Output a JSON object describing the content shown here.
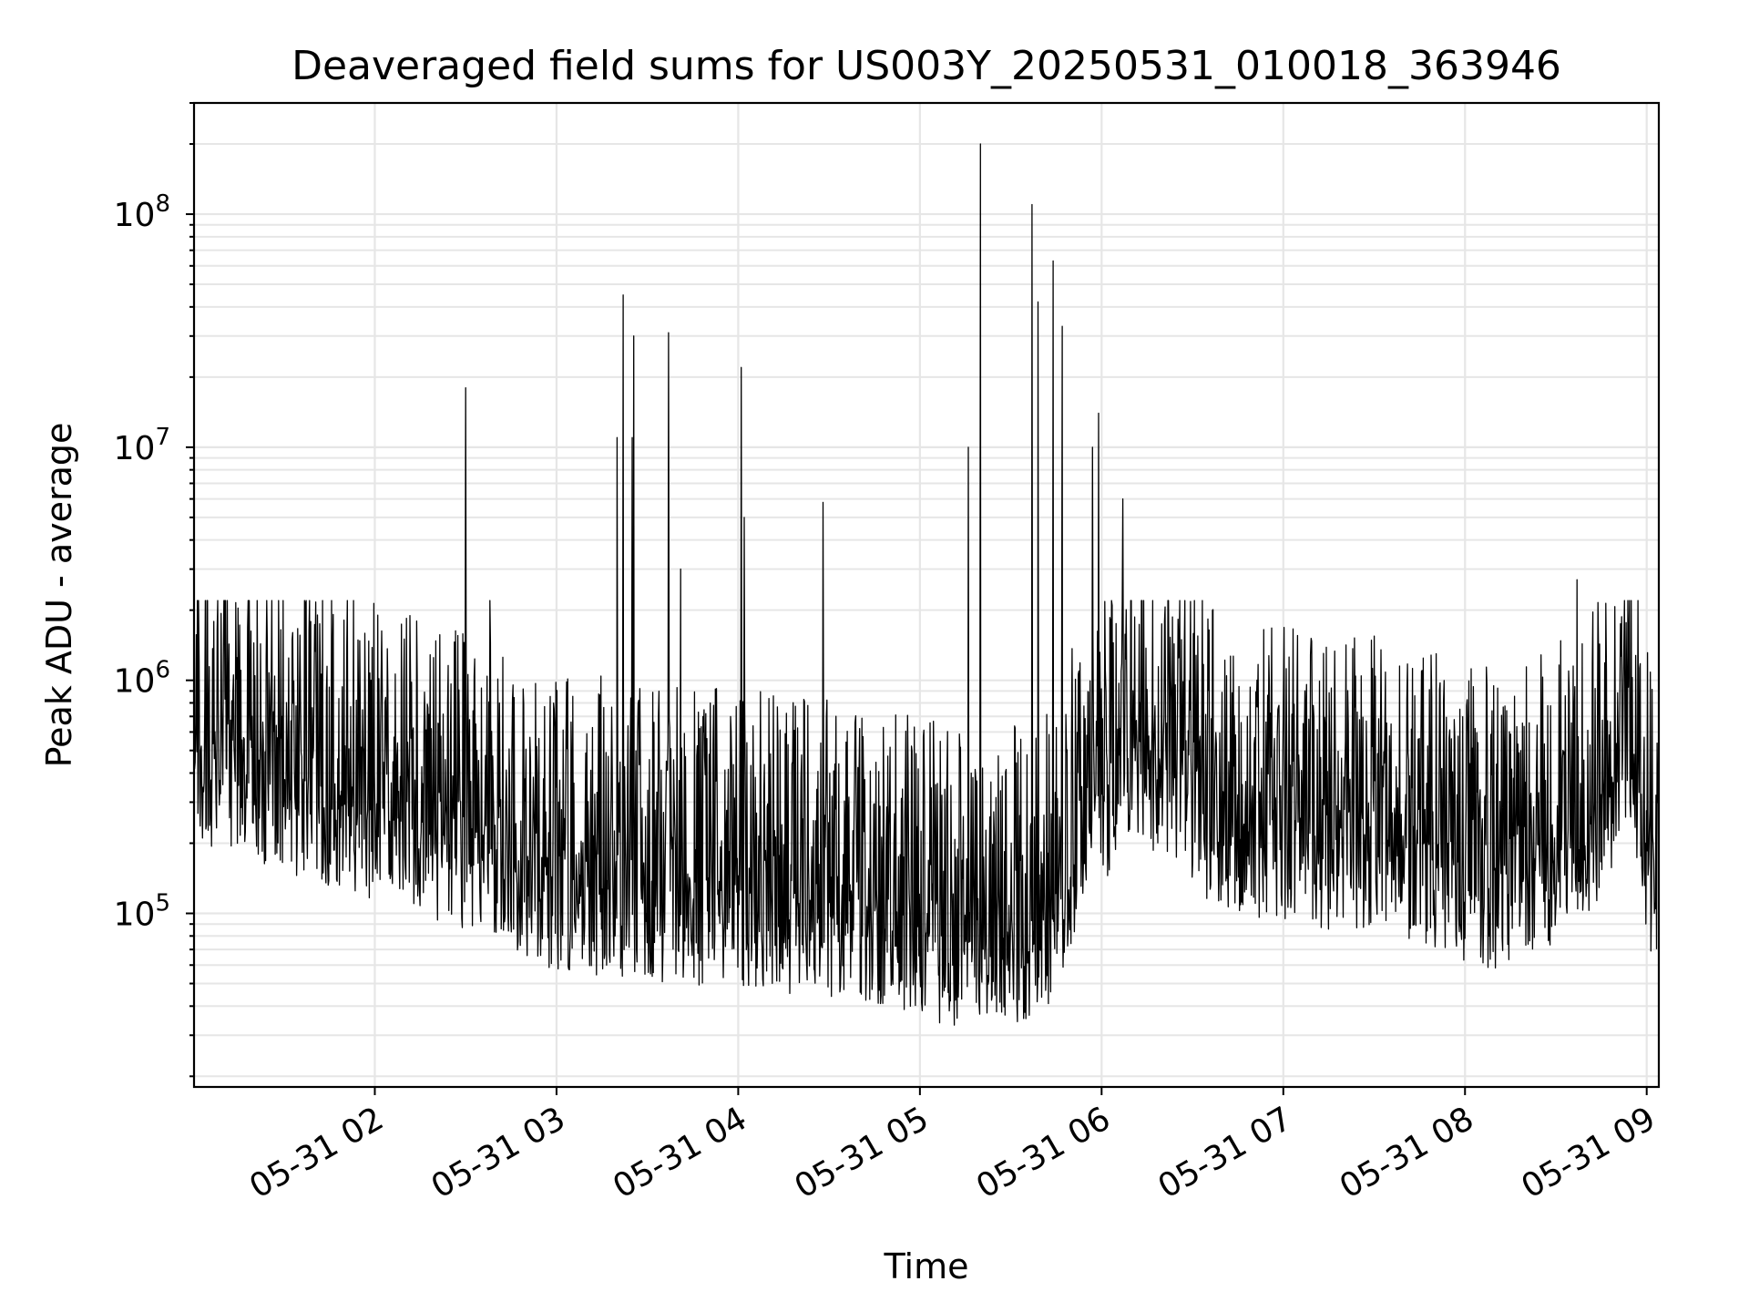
{
  "chart_data": {
    "type": "line",
    "title": "Deaveraged field sums for US003Y_20250531_010018_363946",
    "xlabel": "Time",
    "ylabel": "Peak ADU - average",
    "yscale": "log",
    "ylim": [
      18000,
      300000000
    ],
    "xlim": [
      "2025-05-31T01:00:18",
      "2025-05-31T09:04:00"
    ],
    "grid": true,
    "line_color": "#000000",
    "x_ticks": [
      {
        "label": "05-31 02",
        "t": "2025-05-31T02:00:00"
      },
      {
        "label": "05-31 03",
        "t": "2025-05-31T03:00:00"
      },
      {
        "label": "05-31 04",
        "t": "2025-05-31T04:00:00"
      },
      {
        "label": "05-31 05",
        "t": "2025-05-31T05:00:00"
      },
      {
        "label": "05-31 06",
        "t": "2025-05-31T06:00:00"
      },
      {
        "label": "05-31 07",
        "t": "2025-05-31T07:00:00"
      },
      {
        "label": "05-31 08",
        "t": "2025-05-31T08:00:00"
      },
      {
        "label": "05-31 09",
        "t": "2025-05-31T09:00:00"
      }
    ],
    "y_ticks": [
      {
        "base": "10",
        "exp": "5",
        "value": 100000
      },
      {
        "base": "10",
        "exp": "6",
        "value": 1000000
      },
      {
        "base": "10",
        "exp": "7",
        "value": 10000000
      },
      {
        "base": "10",
        "exp": "8",
        "value": 100000000
      }
    ],
    "baseline_profile": [
      {
        "t": "2025-05-31T01:00:18",
        "value": 700000
      },
      {
        "t": "2025-05-31T01:20:00",
        "value": 600000
      },
      {
        "t": "2025-05-31T01:45:00",
        "value": 450000
      },
      {
        "t": "2025-05-31T02:30:00",
        "value": 300000
      },
      {
        "t": "2025-05-31T03:00:00",
        "value": 200000
      },
      {
        "t": "2025-05-31T03:30:00",
        "value": 180000
      },
      {
        "t": "2025-05-31T04:30:00",
        "value": 150000
      },
      {
        "t": "2025-05-31T05:20:00",
        "value": 110000
      },
      {
        "t": "2025-05-31T05:40:00",
        "value": 120000
      },
      {
        "t": "2025-05-31T05:55:00",
        "value": 350000
      },
      {
        "t": "2025-05-31T06:10:00",
        "value": 800000
      },
      {
        "t": "2025-05-31T06:40:00",
        "value": 350000
      },
      {
        "t": "2025-05-31T07:30:00",
        "value": 280000
      },
      {
        "t": "2025-05-31T08:10:00",
        "value": 200000
      },
      {
        "t": "2025-05-31T08:40:00",
        "value": 300000
      },
      {
        "t": "2025-05-31T08:55:00",
        "value": 900000
      },
      {
        "t": "2025-05-31T09:04:00",
        "value": 120000
      }
    ],
    "spikes": [
      {
        "t": "2025-05-31T02:30:00",
        "value": 18000000
      },
      {
        "t": "2025-05-31T02:38:00",
        "value": 2200000
      },
      {
        "t": "2025-05-31T03:20:00",
        "value": 11000000
      },
      {
        "t": "2025-05-31T03:22:00",
        "value": 45000000
      },
      {
        "t": "2025-05-31T03:25:00",
        "value": 11000000
      },
      {
        "t": "2025-05-31T03:25:30",
        "value": 30000000
      },
      {
        "t": "2025-05-31T03:37:00",
        "value": 31000000
      },
      {
        "t": "2025-05-31T03:41:00",
        "value": 3000000
      },
      {
        "t": "2025-05-31T04:01:00",
        "value": 22000000
      },
      {
        "t": "2025-05-31T04:02:00",
        "value": 5000000
      },
      {
        "t": "2025-05-31T04:28:00",
        "value": 5800000
      },
      {
        "t": "2025-05-31T05:16:00",
        "value": 10000000
      },
      {
        "t": "2025-05-31T05:20:00",
        "value": 200000000
      },
      {
        "t": "2025-05-31T05:37:00",
        "value": 110000000
      },
      {
        "t": "2025-05-31T05:39:00",
        "value": 42000000
      },
      {
        "t": "2025-05-31T05:44:00",
        "value": 63000000
      },
      {
        "t": "2025-05-31T05:47:00",
        "value": 33000000
      },
      {
        "t": "2025-05-31T05:57:00",
        "value": 10000000
      },
      {
        "t": "2025-05-31T05:59:00",
        "value": 14000000
      },
      {
        "t": "2025-05-31T06:07:00",
        "value": 6000000
      },
      {
        "t": "2025-05-31T08:37:00",
        "value": 2700000
      }
    ]
  }
}
